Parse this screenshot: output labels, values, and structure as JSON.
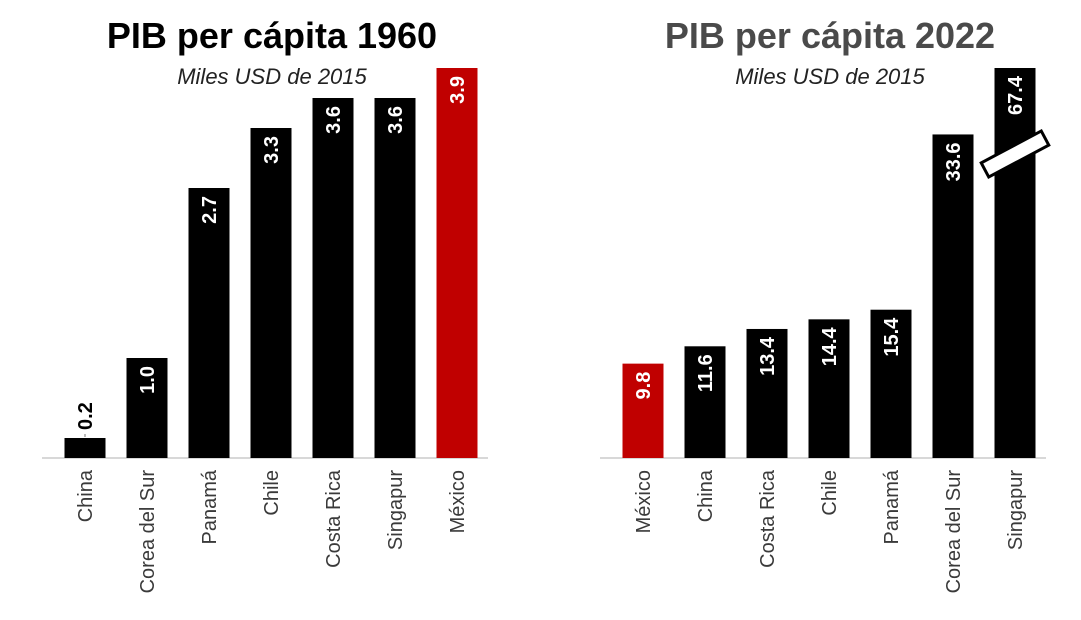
{
  "colors": {
    "bar": "#000000",
    "highlight": "#c00000",
    "axis": "#cccccc",
    "title1": "#000000",
    "title2": "#4a4a4a"
  },
  "chart_data": [
    {
      "type": "bar",
      "title": "PIB per cápita 1960",
      "subtitle": "Miles USD de 2015",
      "categories": [
        "China",
        "Corea del Sur",
        "Panamá",
        "Chile",
        "Costa Rica",
        "Singapur",
        "México"
      ],
      "values": [
        0.2,
        1.0,
        2.7,
        3.3,
        3.6,
        3.6,
        3.9
      ],
      "value_labels": [
        "0.2",
        "1.0",
        "2.7",
        "3.3",
        "3.6",
        "3.6",
        "3.9"
      ],
      "highlight": "México",
      "ylim": [
        0,
        3.9
      ]
    },
    {
      "type": "bar",
      "title": "PIB per cápita 2022",
      "subtitle": "Miles USD de 2015",
      "categories": [
        "México",
        "China",
        "Costa Rica",
        "Chile",
        "Panamá",
        "Corea del Sur",
        "Singapur"
      ],
      "values": [
        9.8,
        11.6,
        13.4,
        14.4,
        15.4,
        33.6,
        67.4
      ],
      "value_labels": [
        "9.8",
        "11.6",
        "13.4",
        "14.4",
        "15.4",
        "33.6",
        "67.4"
      ],
      "highlight": "México",
      "broken_axis_bar": "Singapur",
      "ylim": [
        0,
        40.5
      ]
    }
  ]
}
